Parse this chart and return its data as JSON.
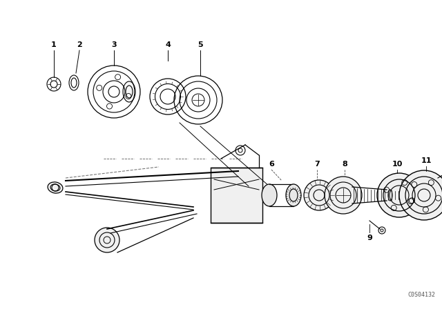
{
  "background_color": "#ffffff",
  "line_color": "#000000",
  "watermark": "C0S04132",
  "fig_width": 6.4,
  "fig_height": 4.48,
  "dpi": 100
}
